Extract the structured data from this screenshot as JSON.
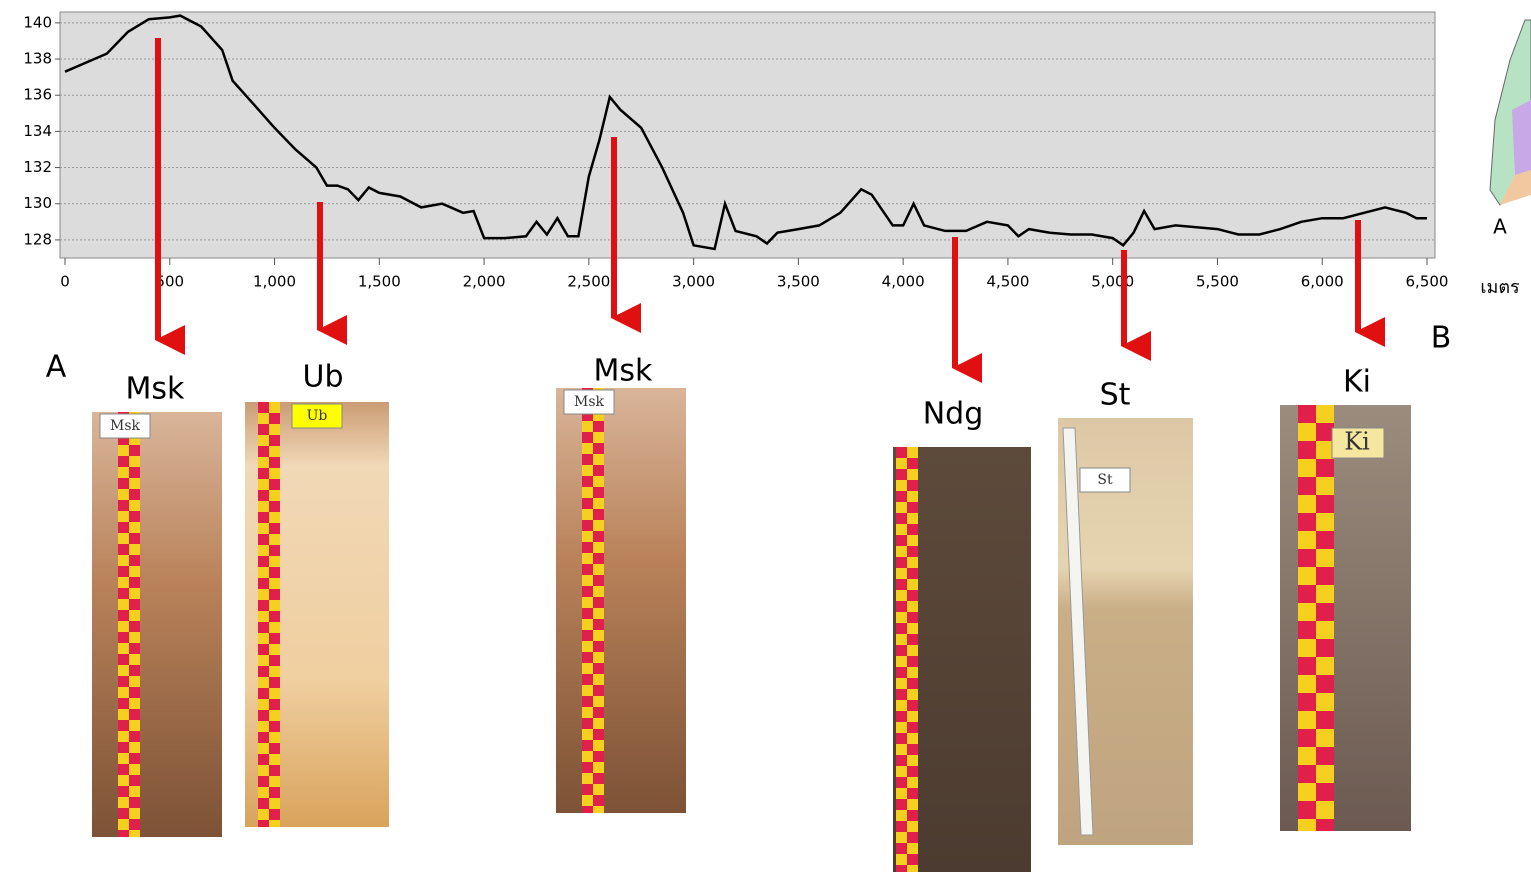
{
  "chart_data": {
    "type": "line",
    "x": [
      0,
      100,
      200,
      300,
      400,
      500,
      550,
      650,
      750,
      800,
      900,
      1000,
      1100,
      1200,
      1250,
      1300,
      1350,
      1400,
      1450,
      1500,
      1600,
      1700,
      1800,
      1900,
      1950,
      2000,
      2100,
      2200,
      2250,
      2300,
      2350,
      2400,
      2450,
      2500,
      2550,
      2600,
      2650,
      2750,
      2850,
      2950,
      3000,
      3100,
      3150,
      3200,
      3300,
      3350,
      3400,
      3500,
      3600,
      3700,
      3800,
      3850,
      3950,
      4000,
      4050,
      4100,
      4200,
      4300,
      4400,
      4500,
      4550,
      4600,
      4700,
      4800,
      4900,
      5000,
      5050,
      5100,
      5150,
      5200,
      5300,
      5400,
      5500,
      5600,
      5700,
      5800,
      5900,
      6000,
      6100,
      6200,
      6300,
      6400,
      6450,
      6500
    ],
    "values": [
      137.3,
      137.8,
      138.3,
      139.5,
      140.2,
      140.3,
      140.4,
      139.8,
      138.5,
      136.8,
      135.5,
      134.2,
      133,
      132,
      131,
      131,
      130.8,
      130.2,
      130.9,
      130.6,
      130.4,
      129.8,
      130,
      129.5,
      129.6,
      128.1,
      128.1,
      128.2,
      129,
      128.3,
      129.2,
      128.2,
      128.2,
      131.5,
      133.5,
      135.9,
      135.2,
      134.2,
      132,
      129.5,
      127.7,
      127.5,
      130,
      128.5,
      128.2,
      127.8,
      128.4,
      128.6,
      128.8,
      129.5,
      130.8,
      130.5,
      128.8,
      128.8,
      130,
      128.8,
      128.5,
      128.5,
      129,
      128.8,
      128.2,
      128.6,
      128.4,
      128.3,
      128.3,
      128.1,
      127.7,
      128.4,
      129.6,
      128.6,
      128.8,
      128.7,
      128.6,
      128.3,
      128.3,
      128.6,
      129,
      129.2,
      129.2,
      129.5,
      129.8,
      129.5,
      129.2,
      129.2
    ],
    "color": "#000000",
    "xlim": [
      0,
      6500
    ],
    "xticks": [
      0,
      500,
      {
        "value": 1000,
        "label": "1,000"
      },
      {
        "value": 1500,
        "label": "1,500"
      },
      {
        "value": 2000,
        "label": "2,000"
      },
      {
        "value": 2500,
        "label": "2,500"
      },
      {
        "value": 3000,
        "label": "3,000"
      },
      {
        "value": 3500,
        "label": "3,500"
      },
      {
        "value": 4000,
        "label": "4,000"
      },
      {
        "value": 4500,
        "label": "4,500"
      },
      {
        "value": 5000,
        "label": "5,000"
      },
      {
        "value": 5500,
        "label": "5,500"
      },
      {
        "value": 6000,
        "label": "6,000"
      },
      {
        "value": 6500,
        "label": "6,500"
      }
    ],
    "ylim": [
      127,
      140.6
    ],
    "yticks": [
      128,
      130,
      132,
      134,
      136,
      138,
      140
    ],
    "grid": true,
    "xlabel": "เมตร"
  },
  "profile": {
    "start": "A",
    "end": "B",
    "map_label": "A"
  },
  "soils": [
    {
      "label": "Msk",
      "tag": "Msk"
    },
    {
      "label": "Ub",
      "tag": "Ub"
    },
    {
      "label": "Msk",
      "tag": "Msk"
    },
    {
      "label": "Ndg"
    },
    {
      "label": "St",
      "tag": "St"
    },
    {
      "label": "Ki",
      "tag": "Ki"
    }
  ]
}
